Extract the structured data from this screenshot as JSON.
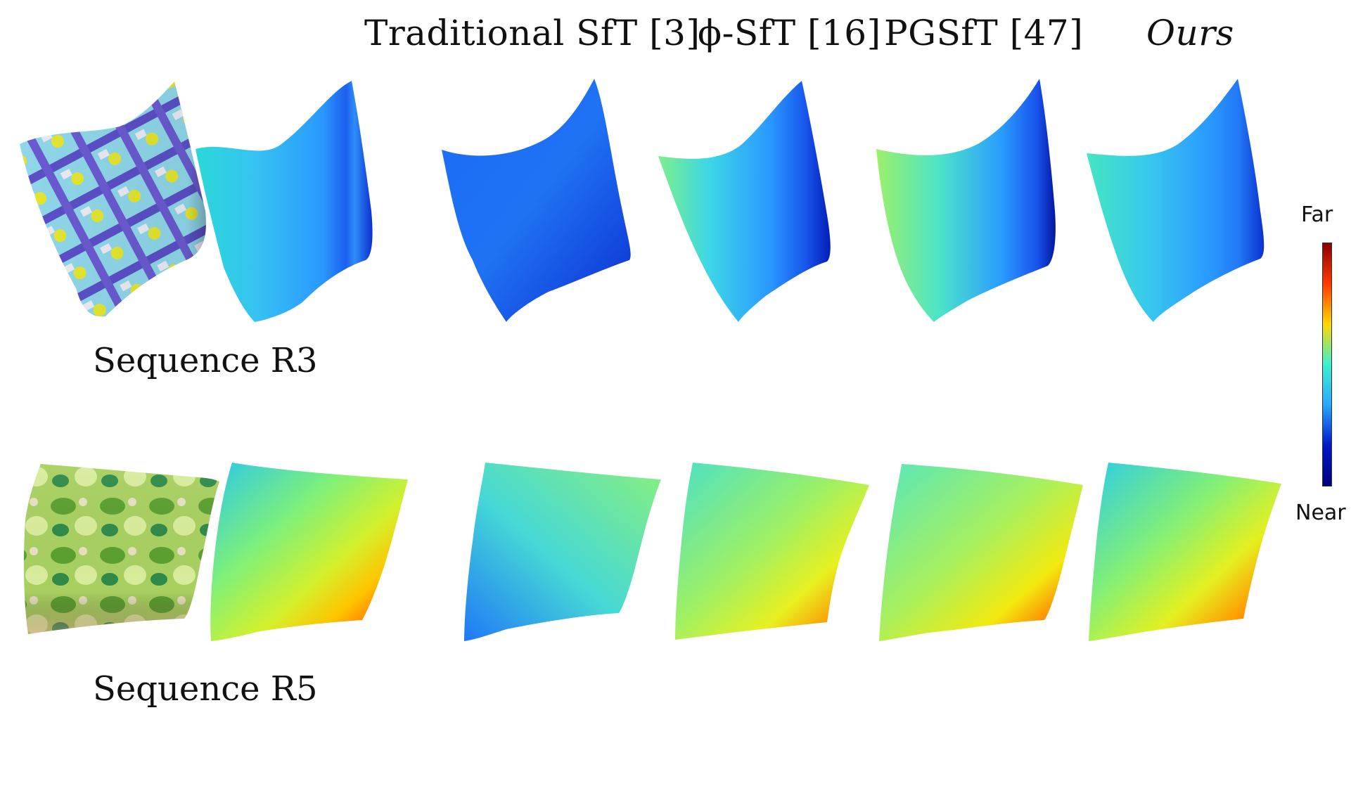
{
  "header": {
    "methods": [
      "Traditional SfT [3]",
      "ϕ-SfT [16]",
      "PGSfT [47]",
      "Ours"
    ]
  },
  "colorbar": {
    "far_label": "Far",
    "near_label": "Near",
    "stops": [
      "#8b0000",
      "#ff3a00",
      "#ffd800",
      "#3cf0d0",
      "#2aa7ff",
      "#0018c8",
      "#00007a"
    ]
  },
  "sequences": [
    {
      "label": "Sequence R3",
      "panels": [
        "input-image",
        "ground-truth",
        "traditional-sft",
        "phi-sft",
        "pgsft",
        "ours"
      ]
    },
    {
      "label": "Sequence R5",
      "panels": [
        "input-image",
        "ground-truth",
        "traditional-sft",
        "phi-sft",
        "pgsft",
        "ours"
      ]
    }
  ]
}
